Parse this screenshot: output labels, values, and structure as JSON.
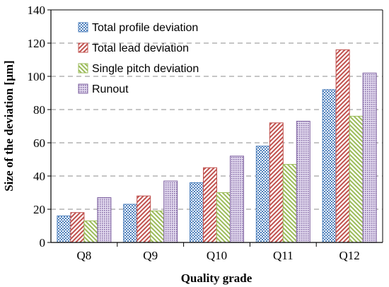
{
  "chart_data": {
    "type": "bar",
    "categories": [
      "Q8",
      "Q9",
      "Q10",
      "Q11",
      "Q12"
    ],
    "series": [
      {
        "name": "Total profile deviation",
        "values": [
          16,
          23,
          36,
          58,
          92
        ],
        "color": "#4f81bd",
        "pattern": "checker"
      },
      {
        "name": "Total lead deviation",
        "values": [
          18,
          28,
          45,
          72,
          116
        ],
        "color": "#c0504d",
        "pattern": "diag-up"
      },
      {
        "name": "Single pitch deviation",
        "values": [
          13,
          19,
          30,
          47,
          76
        ],
        "color": "#9bbb59",
        "pattern": "diag-down"
      },
      {
        "name": "Runout",
        "values": [
          27,
          37,
          52,
          73,
          102
        ],
        "color": "#8064a2",
        "pattern": "dots"
      }
    ],
    "xlabel": "Quality grade",
    "ylabel": "Size of the deviation [µm]",
    "ylim": [
      0,
      140
    ],
    "yticks": [
      "0",
      "20",
      "40",
      "60",
      "80",
      "100",
      "120",
      "140"
    ],
    "grid": "dashed horizontal",
    "legend": "top-left"
  }
}
